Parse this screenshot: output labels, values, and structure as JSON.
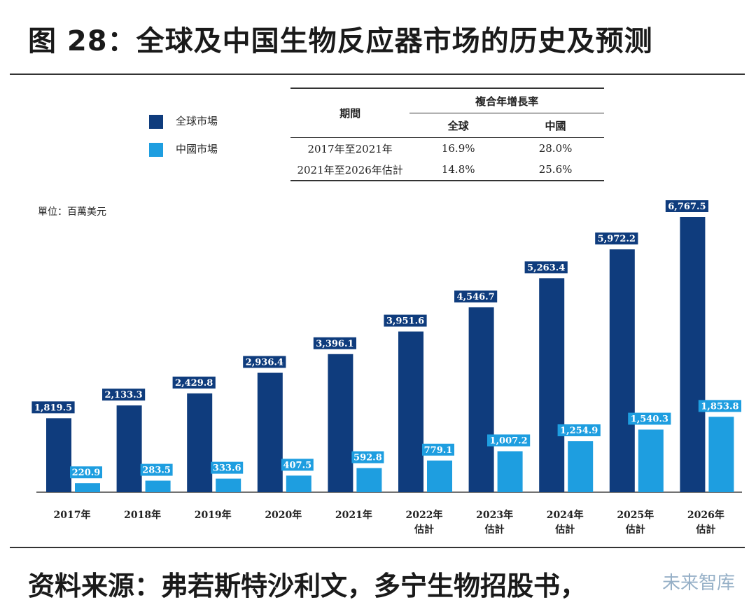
{
  "title": "图 28：全球及中国生物反应器市场的历史及预测",
  "footer": "资料来源：弗若斯特沙利文，多宁生物招股书，",
  "watermark": "未来智库",
  "unit_label": "單位：百萬美元",
  "legend": {
    "global": "全球市場",
    "china": "中國市場"
  },
  "colors": {
    "global": "#0f3c7d",
    "china": "#1e9ee0"
  },
  "cagr_table": {
    "period_header": "期間",
    "group_header": "複合年增長率",
    "col_global": "全球",
    "col_china": "中國",
    "rows": [
      {
        "period": "2017年至2021年",
        "global": "16.9%",
        "china": "28.0%"
      },
      {
        "period": "2021年至2026年估計",
        "global": "14.8%",
        "china": "25.6%"
      }
    ]
  },
  "chart_data": {
    "type": "bar",
    "title": "全球及中国生物反应器市场的历史及预测",
    "ylabel": "單位：百萬美元",
    "ylim": [
      0,
      6767.5
    ],
    "categories": [
      [
        "2017年"
      ],
      [
        "2018年"
      ],
      [
        "2019年"
      ],
      [
        "2020年"
      ],
      [
        "2021年"
      ],
      [
        "2022年",
        "估計"
      ],
      [
        "2023年",
        "估計"
      ],
      [
        "2024年",
        "估計"
      ],
      [
        "2025年",
        "估計"
      ],
      [
        "2026年",
        "估計"
      ]
    ],
    "series": [
      {
        "name": "全球市場",
        "values": [
          1819.5,
          2133.3,
          2429.8,
          2936.4,
          3396.1,
          3951.6,
          4546.7,
          5263.4,
          5972.2,
          6767.5
        ],
        "labels": [
          "1,819.5",
          "2,133.3",
          "2,429.8",
          "2,936.4",
          "3,396.1",
          "3,951.6",
          "4,546.7",
          "5,263.4",
          "5,972.2",
          "6,767.5"
        ]
      },
      {
        "name": "中國市場",
        "values": [
          220.9,
          283.5,
          333.6,
          407.5,
          592.8,
          779.1,
          1007.2,
          1254.9,
          1540.3,
          1853.8
        ],
        "labels": [
          "220.9",
          "283.5",
          "333.6",
          "407.5",
          "592.8",
          "779.1",
          "1,007.2",
          "1,254.9",
          "1,540.3",
          "1,853.8"
        ]
      }
    ]
  }
}
